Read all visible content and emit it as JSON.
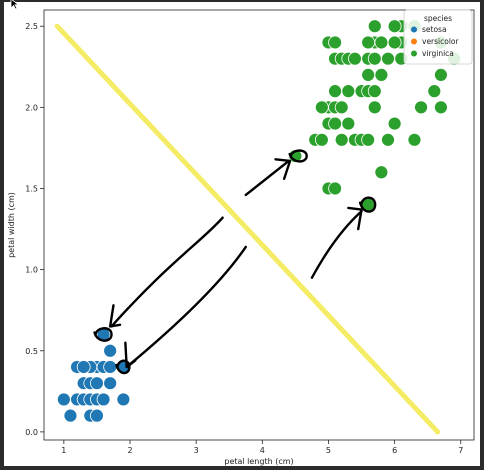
{
  "chart_data": {
    "type": "scatter",
    "xlabel": "petal length (cm)",
    "ylabel": "petal width (cm)",
    "xlim": [
      0.7,
      7.2
    ],
    "ylim": [
      -0.05,
      2.6
    ],
    "xticks": [
      1,
      2,
      3,
      4,
      5,
      6,
      7
    ],
    "yticks": [
      0.0,
      0.5,
      1.0,
      1.5,
      2.0,
      2.5
    ],
    "legend": {
      "title": "species",
      "position": "top-right",
      "entries": [
        {
          "name": "setosa",
          "color": "#1f77b4"
        },
        {
          "name": "versicolor",
          "color": "#ff7f0e"
        },
        {
          "name": "virginica",
          "color": "#2ca02c"
        }
      ]
    },
    "series": [
      {
        "name": "setosa",
        "color": "#1f77b4",
        "points": [
          [
            1.0,
            0.2
          ],
          [
            1.1,
            0.1
          ],
          [
            1.2,
            0.2
          ],
          [
            1.3,
            0.2
          ],
          [
            1.3,
            0.3
          ],
          [
            1.4,
            0.2
          ],
          [
            1.4,
            0.1
          ],
          [
            1.4,
            0.3
          ],
          [
            1.5,
            0.2
          ],
          [
            1.5,
            0.1
          ],
          [
            1.5,
            0.4
          ],
          [
            1.5,
            0.3
          ],
          [
            1.4,
            0.4
          ],
          [
            1.6,
            0.2
          ],
          [
            1.6,
            0.4
          ],
          [
            1.7,
            0.4
          ],
          [
            1.7,
            0.3
          ],
          [
            1.9,
            0.2
          ],
          [
            1.9,
            0.4
          ],
          [
            1.6,
            0.6
          ],
          [
            1.7,
            0.5
          ],
          [
            1.2,
            0.4
          ],
          [
            1.3,
            0.4
          ]
        ]
      },
      {
        "name": "versicolor",
        "color": "#ff7f0e",
        "points": []
      },
      {
        "name": "virginica",
        "color": "#2ca02c",
        "points": [
          [
            4.5,
            1.7
          ],
          [
            4.8,
            1.8
          ],
          [
            4.9,
            1.8
          ],
          [
            5.0,
            1.5
          ],
          [
            5.1,
            1.5
          ],
          [
            5.0,
            1.9
          ],
          [
            5.1,
            1.9
          ],
          [
            5.2,
            1.8
          ],
          [
            5.4,
            1.8
          ],
          [
            5.5,
            1.8
          ],
          [
            5.6,
            1.8
          ],
          [
            5.9,
            1.8
          ],
          [
            6.3,
            1.8
          ],
          [
            5.6,
            1.4
          ],
          [
            5.8,
            1.6
          ],
          [
            5.0,
            2.0
          ],
          [
            4.9,
            2.0
          ],
          [
            5.1,
            2.0
          ],
          [
            5.2,
            2.0
          ],
          [
            5.3,
            1.9
          ],
          [
            5.7,
            2.0
          ],
          [
            6.0,
            1.9
          ],
          [
            6.4,
            2.0
          ],
          [
            6.7,
            2.0
          ],
          [
            5.1,
            2.1
          ],
          [
            5.3,
            2.1
          ],
          [
            5.5,
            2.1
          ],
          [
            5.6,
            2.1
          ],
          [
            5.7,
            2.1
          ],
          [
            6.6,
            2.1
          ],
          [
            5.6,
            2.2
          ],
          [
            5.8,
            2.2
          ],
          [
            6.7,
            2.2
          ],
          [
            5.1,
            2.3
          ],
          [
            5.2,
            2.3
          ],
          [
            5.3,
            2.3
          ],
          [
            5.4,
            2.3
          ],
          [
            5.6,
            2.3
          ],
          [
            5.7,
            2.3
          ],
          [
            5.9,
            2.3
          ],
          [
            6.1,
            2.3
          ],
          [
            6.9,
            2.3
          ],
          [
            5.0,
            2.4
          ],
          [
            5.1,
            2.4
          ],
          [
            5.6,
            2.4
          ],
          [
            5.7,
            2.4
          ],
          [
            6.1,
            2.4
          ],
          [
            6.0,
            2.4
          ],
          [
            6.1,
            2.5
          ],
          [
            6.3,
            2.5
          ],
          [
            6.7,
            2.4
          ],
          [
            5.7,
            2.5
          ],
          [
            6.0,
            2.5
          ],
          [
            5.6,
            2.4
          ],
          [
            5.8,
            2.4
          ]
        ]
      }
    ],
    "annotations": {
      "yellow_line": {
        "color": "#f4ea55",
        "from": [
          0.9,
          2.5
        ],
        "to": [
          6.65,
          0.0
        ]
      },
      "ink_color": "#000000"
    }
  }
}
